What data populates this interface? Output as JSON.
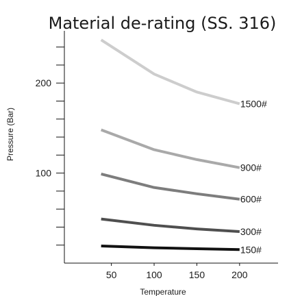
{
  "chart_data": {
    "type": "line",
    "title": "Material de-rating (SS. 316)",
    "xlabel": "Temperature",
    "ylabel": "Pressure (Bar)",
    "x": [
      38,
      100,
      150,
      200
    ],
    "xticks": [
      50,
      100,
      150,
      200
    ],
    "yticks_labeled": [
      100,
      200
    ],
    "xlim": [
      -5,
      245
    ],
    "ylim": [
      0,
      258
    ],
    "grid": false,
    "series": [
      {
        "name": "1500#",
        "values": [
          248,
          210,
          190,
          177
        ],
        "color": "#cdcdcd"
      },
      {
        "name": "900#",
        "values": [
          148,
          126,
          115,
          106
        ],
        "color": "#a9a9a9"
      },
      {
        "name": "600#",
        "values": [
          99,
          84,
          77,
          71
        ],
        "color": "#7d7d7d"
      },
      {
        "name": "300#",
        "values": [
          49,
          42,
          38,
          35
        ],
        "color": "#4f4f4f"
      },
      {
        "name": "150#",
        "values": [
          19,
          17,
          16,
          15
        ],
        "color": "#111111"
      }
    ]
  }
}
